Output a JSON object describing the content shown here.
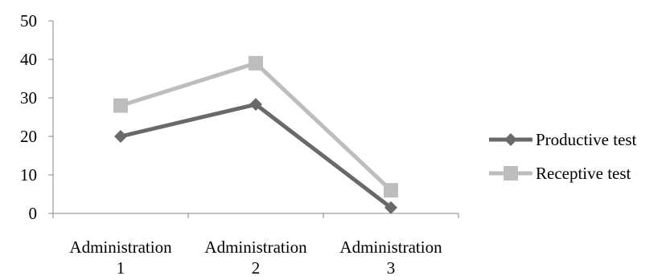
{
  "chart_data": {
    "type": "line",
    "categories": [
      "Administration 1",
      "Administration 2",
      "Administration 3"
    ],
    "category_lines": [
      [
        "Administration",
        "1"
      ],
      [
        "Administration",
        "2"
      ],
      [
        "Administration",
        "3"
      ]
    ],
    "yticks": [
      "0",
      "10",
      "20",
      "30",
      "40",
      "50"
    ],
    "ylim": [
      0,
      50
    ],
    "title": "",
    "xlabel": "",
    "ylabel": "",
    "grid": false,
    "legend_position": "right",
    "series": [
      {
        "name": "Productive test",
        "values": [
          20,
          28.3,
          1.5
        ],
        "color": "#696969",
        "marker": "diamond"
      },
      {
        "name": "Receptive test",
        "values": [
          28,
          39,
          6
        ],
        "color": "#bdbdbd",
        "marker": "square"
      }
    ]
  }
}
